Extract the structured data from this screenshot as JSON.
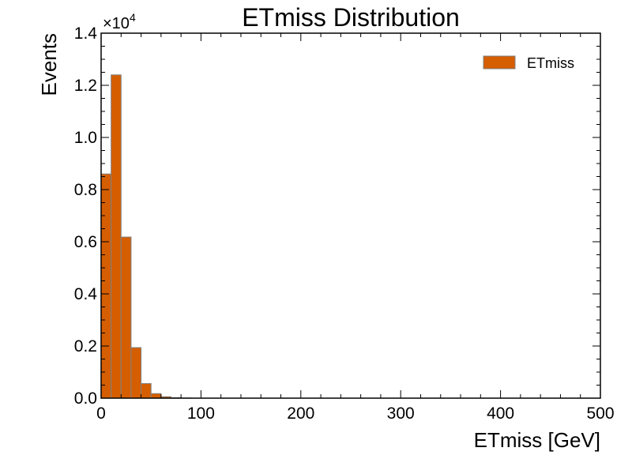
{
  "chart_data": {
    "type": "bar",
    "title": "ETmiss Distribution",
    "xlabel": "ETmiss [GeV]",
    "ylabel": "Events",
    "y_multiplier_label": "×10",
    "y_multiplier_exponent": "4",
    "xlim": [
      0,
      500
    ],
    "ylim": [
      0,
      14000
    ],
    "x_ticks": [
      0,
      100,
      200,
      300,
      400,
      500
    ],
    "x_tick_labels": [
      "0",
      "100",
      "200",
      "300",
      "400",
      "500"
    ],
    "y_ticks": [
      0,
      2000,
      4000,
      6000,
      8000,
      10000,
      12000,
      14000
    ],
    "y_tick_labels": [
      "0.0",
      "0.2",
      "0.4",
      "0.6",
      "0.8",
      "1.0",
      "1.2",
      "1.4"
    ],
    "grid": false,
    "legend_position": "top-right",
    "bin_width": 10,
    "bin_edges": [
      0,
      10,
      20,
      30,
      40,
      50,
      60,
      70,
      80,
      90
    ],
    "series": [
      {
        "name": "ETmiss",
        "color": "#d55e00",
        "edge_color": "#808080",
        "values": [
          8600,
          12400,
          6180,
          1940,
          560,
          175,
          55,
          20,
          8
        ]
      }
    ]
  }
}
